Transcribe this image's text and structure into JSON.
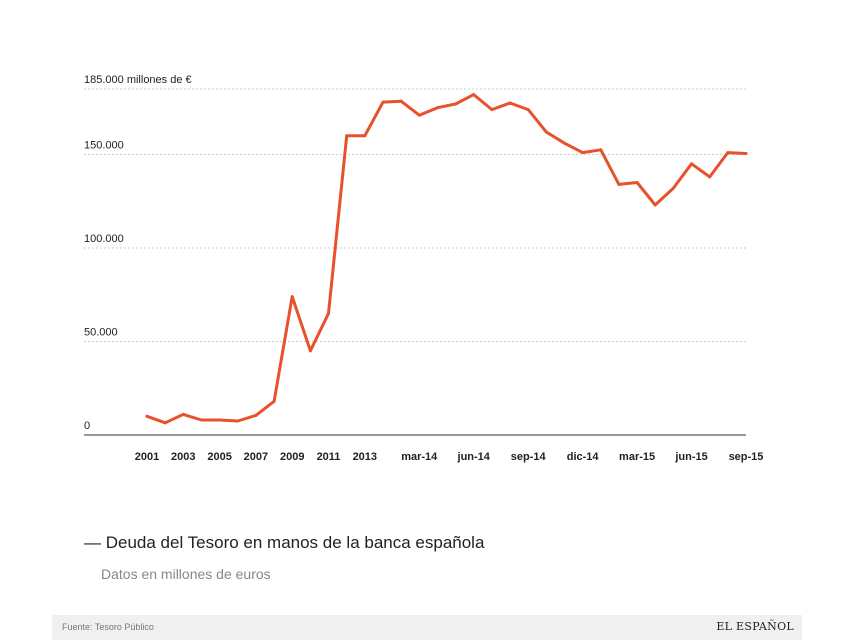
{
  "legend": {
    "dash": "—",
    "title": "Deuda del Tesoro en manos de la banca española"
  },
  "subtitle": "Datos en millones de euros",
  "footer": {
    "source": "Fuente: Tesoro Público",
    "logo": "EL ESPAÑOL"
  },
  "colors": {
    "line": "#e8512b",
    "grid": "#cccccc",
    "axis": "#333333",
    "text": "#222222"
  },
  "chart_data": {
    "type": "line",
    "title": "Deuda del Tesoro en manos de la banca española",
    "ylabel": "millones de €",
    "ylim": [
      0,
      185000
    ],
    "yticks": [
      {
        "value": 0,
        "label": "0"
      },
      {
        "value": 50000,
        "label": "50.000"
      },
      {
        "value": 100000,
        "label": "100.000"
      },
      {
        "value": 150000,
        "label": "150.000"
      },
      {
        "value": 185000,
        "label": "185.000 millones de €"
      }
    ],
    "xticks": [
      {
        "index": 0,
        "label": "2001"
      },
      {
        "index": 2,
        "label": "2003"
      },
      {
        "index": 4,
        "label": "2005"
      },
      {
        "index": 6,
        "label": "2007"
      },
      {
        "index": 8,
        "label": "2009"
      },
      {
        "index": 10,
        "label": "2011"
      },
      {
        "index": 12,
        "label": "2013"
      },
      {
        "index": 15,
        "label": "mar-14"
      },
      {
        "index": 18,
        "label": "jun-14"
      },
      {
        "index": 21,
        "label": "sep-14"
      },
      {
        "index": 24,
        "label": "dic-14"
      },
      {
        "index": 27,
        "label": "mar-15"
      },
      {
        "index": 30,
        "label": "jun-15"
      },
      {
        "index": 33,
        "label": "sep-15"
      }
    ],
    "series": [
      {
        "name": "Deuda del Tesoro en manos de la banca española",
        "values": [
          10000,
          6500,
          11000,
          8000,
          8000,
          7500,
          10500,
          18000,
          74000,
          45000,
          65000,
          160000,
          160000,
          178000,
          178500,
          171000,
          175000,
          177000,
          182000,
          174000,
          177500,
          174000,
          162000,
          156000,
          151000,
          152500,
          134000,
          135000,
          123000,
          132000,
          145000,
          138000,
          151000,
          150500
        ]
      }
    ]
  }
}
